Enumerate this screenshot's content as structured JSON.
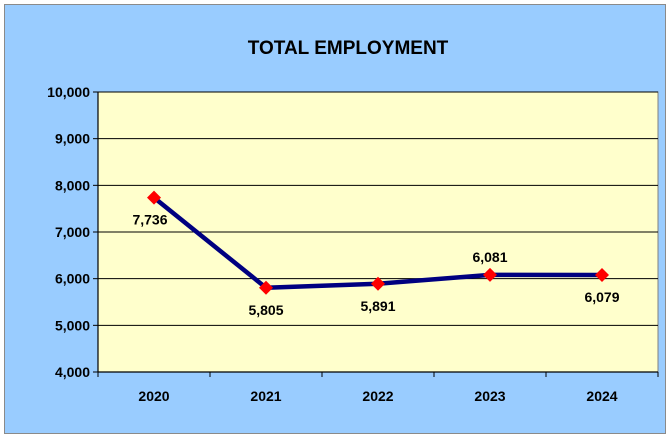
{
  "chart_data": {
    "type": "line",
    "title": "TOTAL EMPLOYMENT",
    "xlabel": "",
    "ylabel": "",
    "categories": [
      "2020",
      "2021",
      "2022",
      "2023",
      "2024"
    ],
    "series": [
      {
        "values": [
          7736,
          5805,
          5891,
          6081,
          6079
        ]
      }
    ],
    "data_labels": [
      "7,736",
      "5,805",
      "5,891",
      "6,081",
      "6,079"
    ],
    "ylim": [
      4000,
      10000
    ],
    "yticks": [
      4000,
      5000,
      6000,
      7000,
      8000,
      9000,
      10000
    ],
    "ytick_labels": [
      "4,000",
      "5,000",
      "6,000",
      "7,000",
      "8,000",
      "9,000",
      "10,000"
    ],
    "grid": true,
    "legend": "none",
    "colors": {
      "background": "#99ccff",
      "plot_area": "#ffffcc",
      "line": "#000080",
      "marker": "#ff0000",
      "grid": "#000000"
    }
  }
}
